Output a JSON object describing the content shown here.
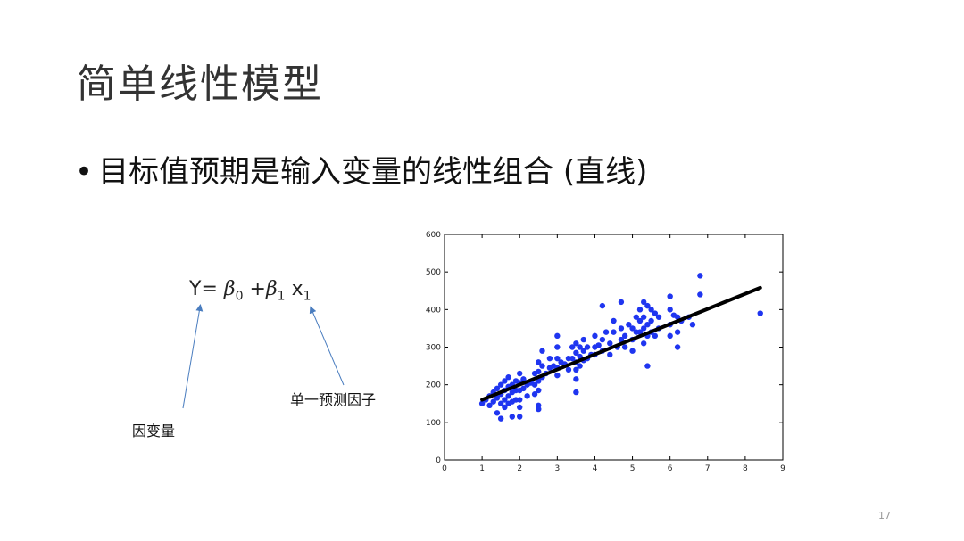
{
  "slide": {
    "title": "简单线性模型",
    "bullet": "目标值预期是输入变量的线性组合 (直线)",
    "page_number": "17"
  },
  "formula": {
    "lhs": "Y=",
    "beta0": "β",
    "beta0_sub": "0",
    "plus": "+",
    "beta1": "β",
    "beta1_sub": "1",
    "x": "x",
    "x_sub": "1"
  },
  "annotations": {
    "dependent_var": "因变量",
    "single_predictor": "单一预测因子"
  },
  "colors": {
    "points": "#1f35f0",
    "line": "#000000",
    "arrow": "#4a7dbf"
  },
  "chart_data": {
    "type": "scatter",
    "xlim": [
      0,
      9
    ],
    "ylim": [
      0,
      600
    ],
    "x_ticks": [
      0,
      1,
      2,
      3,
      4,
      5,
      6,
      7,
      8,
      9
    ],
    "y_ticks": [
      0,
      100,
      200,
      300,
      400,
      500,
      600
    ],
    "fit_line": {
      "x": [
        1.0,
        8.4
      ],
      "y": [
        160,
        458
      ]
    },
    "points": [
      [
        1.0,
        150
      ],
      [
        1.1,
        160
      ],
      [
        1.2,
        170
      ],
      [
        1.2,
        145
      ],
      [
        1.3,
        180
      ],
      [
        1.3,
        155
      ],
      [
        1.4,
        190
      ],
      [
        1.4,
        165
      ],
      [
        1.4,
        125
      ],
      [
        1.5,
        200
      ],
      [
        1.5,
        175
      ],
      [
        1.5,
        150
      ],
      [
        1.5,
        110
      ],
      [
        1.6,
        210
      ],
      [
        1.6,
        185
      ],
      [
        1.6,
        160
      ],
      [
        1.6,
        140
      ],
      [
        1.7,
        220
      ],
      [
        1.7,
        195
      ],
      [
        1.7,
        170
      ],
      [
        1.7,
        150
      ],
      [
        1.8,
        200
      ],
      [
        1.8,
        180
      ],
      [
        1.8,
        155
      ],
      [
        1.8,
        115
      ],
      [
        1.9,
        210
      ],
      [
        1.9,
        185
      ],
      [
        1.9,
        160
      ],
      [
        2.0,
        230
      ],
      [
        2.0,
        205
      ],
      [
        2.0,
        185
      ],
      [
        2.0,
        160
      ],
      [
        2.0,
        140
      ],
      [
        2.0,
        115
      ],
      [
        2.1,
        215
      ],
      [
        2.1,
        190
      ],
      [
        2.2,
        200
      ],
      [
        2.2,
        170
      ],
      [
        2.3,
        205
      ],
      [
        2.4,
        230
      ],
      [
        2.4,
        200
      ],
      [
        2.4,
        175
      ],
      [
        2.5,
        260
      ],
      [
        2.5,
        235
      ],
      [
        2.5,
        210
      ],
      [
        2.5,
        185
      ],
      [
        2.5,
        145
      ],
      [
        2.5,
        135
      ],
      [
        2.6,
        290
      ],
      [
        2.6,
        250
      ],
      [
        2.6,
        220
      ],
      [
        2.7,
        230
      ],
      [
        2.8,
        270
      ],
      [
        2.8,
        245
      ],
      [
        2.9,
        250
      ],
      [
        3.0,
        330
      ],
      [
        3.0,
        300
      ],
      [
        3.0,
        270
      ],
      [
        3.0,
        245
      ],
      [
        3.0,
        225
      ],
      [
        3.1,
        260
      ],
      [
        3.2,
        255
      ],
      [
        3.3,
        270
      ],
      [
        3.3,
        240
      ],
      [
        3.4,
        300
      ],
      [
        3.4,
        270
      ],
      [
        3.5,
        310
      ],
      [
        3.5,
        285
      ],
      [
        3.5,
        260
      ],
      [
        3.5,
        240
      ],
      [
        3.5,
        215
      ],
      [
        3.5,
        180
      ],
      [
        3.6,
        300
      ],
      [
        3.6,
        275
      ],
      [
        3.6,
        250
      ],
      [
        3.7,
        320
      ],
      [
        3.7,
        290
      ],
      [
        3.7,
        265
      ],
      [
        3.8,
        300
      ],
      [
        3.8,
        270
      ],
      [
        3.9,
        280
      ],
      [
        4.0,
        330
      ],
      [
        4.0,
        300
      ],
      [
        4.0,
        280
      ],
      [
        4.1,
        305
      ],
      [
        4.2,
        410
      ],
      [
        4.2,
        320
      ],
      [
        4.2,
        290
      ],
      [
        4.3,
        340
      ],
      [
        4.4,
        310
      ],
      [
        4.4,
        280
      ],
      [
        4.5,
        370
      ],
      [
        4.5,
        340
      ],
      [
        4.6,
        300
      ],
      [
        4.7,
        420
      ],
      [
        4.7,
        350
      ],
      [
        4.7,
        320
      ],
      [
        4.8,
        330
      ],
      [
        4.8,
        300
      ],
      [
        4.9,
        360
      ],
      [
        5.0,
        350
      ],
      [
        5.0,
        320
      ],
      [
        5.0,
        290
      ],
      [
        5.1,
        380
      ],
      [
        5.1,
        340
      ],
      [
        5.2,
        400
      ],
      [
        5.2,
        370
      ],
      [
        5.2,
        340
      ],
      [
        5.3,
        420
      ],
      [
        5.3,
        380
      ],
      [
        5.3,
        350
      ],
      [
        5.3,
        310
      ],
      [
        5.4,
        410
      ],
      [
        5.4,
        360
      ],
      [
        5.4,
        330
      ],
      [
        5.4,
        250
      ],
      [
        5.5,
        400
      ],
      [
        5.5,
        370
      ],
      [
        5.5,
        340
      ],
      [
        5.6,
        390
      ],
      [
        5.6,
        330
      ],
      [
        5.7,
        380
      ],
      [
        5.7,
        350
      ],
      [
        6.0,
        435
      ],
      [
        6.0,
        400
      ],
      [
        6.0,
        360
      ],
      [
        6.0,
        330
      ],
      [
        6.1,
        385
      ],
      [
        6.2,
        380
      ],
      [
        6.2,
        340
      ],
      [
        6.2,
        300
      ],
      [
        6.3,
        370
      ],
      [
        6.5,
        380
      ],
      [
        6.6,
        360
      ],
      [
        6.8,
        490
      ],
      [
        6.8,
        440
      ],
      [
        8.4,
        390
      ]
    ]
  }
}
